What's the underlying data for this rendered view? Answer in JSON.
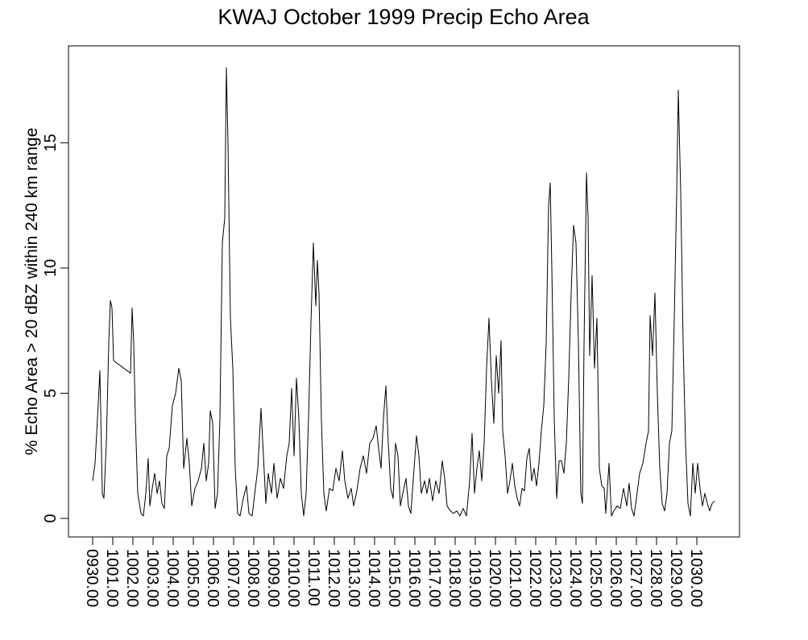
{
  "chart_data": {
    "type": "line",
    "title": "KWAJ October 1999 Precip Echo Area",
    "y_label": "% Echo Area > 20 dBZ within 240 km range",
    "xlim": [
      -1.2,
      32.12
    ],
    "ylim": [
      -0.74,
      18.87
    ],
    "yticks": [
      0,
      5,
      10,
      15
    ],
    "xticks": [
      {
        "value": 0,
        "label": "0930.00"
      },
      {
        "value": 1,
        "label": "1001.00"
      },
      {
        "value": 2,
        "label": "1002.00"
      },
      {
        "value": 3,
        "label": "1003.00"
      },
      {
        "value": 4,
        "label": "1004.00"
      },
      {
        "value": 5,
        "label": "1005.00"
      },
      {
        "value": 6,
        "label": "1006.00"
      },
      {
        "value": 7,
        "label": "1007.00"
      },
      {
        "value": 8,
        "label": "1008.00"
      },
      {
        "value": 9,
        "label": "1009.00"
      },
      {
        "value": 10,
        "label": "1010.00"
      },
      {
        "value": 11,
        "label": "1011.00"
      },
      {
        "value": 12,
        "label": "1012.00"
      },
      {
        "value": 13,
        "label": "1013.00"
      },
      {
        "value": 14,
        "label": "1014.00"
      },
      {
        "value": 15,
        "label": "1015.00"
      },
      {
        "value": 16,
        "label": "1016.00"
      },
      {
        "value": 17,
        "label": "1017.00"
      },
      {
        "value": 18,
        "label": "1018.00"
      },
      {
        "value": 19,
        "label": "1019.00"
      },
      {
        "value": 20,
        "label": "1020.00"
      },
      {
        "value": 21,
        "label": "1021.00"
      },
      {
        "value": 22,
        "label": "1022.00"
      },
      {
        "value": 23,
        "label": "1023.00"
      },
      {
        "value": 24,
        "label": "1024.00"
      },
      {
        "value": 25,
        "label": "1025.00"
      },
      {
        "value": 26,
        "label": "1026.00"
      },
      {
        "value": 27,
        "label": "1027.00"
      },
      {
        "value": 28,
        "label": "1028.00"
      },
      {
        "value": 29,
        "label": "1029.00"
      },
      {
        "value": 30,
        "label": "1030.00"
      }
    ],
    "grid": false,
    "color": "#000000",
    "x": [
      0,
      0.12,
      0.24,
      0.36,
      0.48,
      0.56,
      0.68,
      0.8,
      0.88,
      0.96,
      1.04,
      1.88,
      1.96,
      2.04,
      2.12,
      2.24,
      2.4,
      2.52,
      2.64,
      2.76,
      2.84,
      2.96,
      3.08,
      3.2,
      3.32,
      3.44,
      3.56,
      3.68,
      3.8,
      3.96,
      4.12,
      4.28,
      4.4,
      4.52,
      4.68,
      4.8,
      4.92,
      5.08,
      5.24,
      5.4,
      5.52,
      5.64,
      5.76,
      5.84,
      5.96,
      6.08,
      6.2,
      6.32,
      6.44,
      6.56,
      6.64,
      6.72,
      6.84,
      6.96,
      7.08,
      7.2,
      7.32,
      7.48,
      7.64,
      7.76,
      7.92,
      8.08,
      8.2,
      8.36,
      8.48,
      8.6,
      8.72,
      8.88,
      9,
      9.16,
      9.32,
      9.48,
      9.64,
      9.76,
      9.88,
      10,
      10.12,
      10.24,
      10.36,
      10.48,
      10.6,
      10.72,
      10.84,
      10.96,
      11.08,
      11.16,
      11.24,
      11.36,
      11.48,
      11.6,
      11.76,
      11.92,
      12.08,
      12.24,
      12.4,
      12.52,
      12.68,
      12.84,
      12.96,
      13.12,
      13.28,
      13.44,
      13.6,
      13.76,
      13.92,
      14.08,
      14.2,
      14.32,
      14.44,
      14.56,
      14.68,
      14.8,
      14.92,
      15.04,
      15.16,
      15.28,
      15.4,
      15.56,
      15.68,
      15.8,
      15.96,
      16.08,
      16.2,
      16.32,
      16.48,
      16.6,
      16.72,
      16.88,
      17.04,
      17.2,
      17.36,
      17.48,
      17.6,
      17.76,
      17.92,
      18.08,
      18.24,
      18.4,
      18.56,
      18.72,
      18.84,
      18.96,
      19.08,
      19.2,
      19.32,
      19.44,
      19.56,
      19.68,
      19.8,
      19.92,
      20.04,
      20.16,
      20.28,
      20.36,
      20.48,
      20.6,
      20.72,
      20.84,
      20.96,
      21.08,
      21.2,
      21.32,
      21.44,
      21.56,
      21.68,
      21.8,
      21.92,
      22.04,
      22.16,
      22.28,
      22.4,
      22.52,
      22.64,
      22.72,
      22.8,
      22.92,
      23.04,
      23.16,
      23.28,
      23.4,
      23.52,
      23.64,
      23.76,
      23.88,
      24,
      24.12,
      24.24,
      24.32,
      24.4,
      24.52,
      24.6,
      24.68,
      24.8,
      24.92,
      25.04,
      25.16,
      25.28,
      25.4,
      25.48,
      25.64,
      25.76,
      25.88,
      26.04,
      26.2,
      26.36,
      26.52,
      26.64,
      26.76,
      26.88,
      27,
      27.16,
      27.32,
      27.48,
      27.6,
      27.68,
      27.8,
      27.92,
      28.04,
      28.16,
      28.28,
      28.4,
      28.52,
      28.64,
      28.76,
      28.88,
      29,
      29.08,
      29.2,
      29.32,
      29.44,
      29.56,
      29.68,
      29.8,
      29.92,
      30.04,
      30.16,
      30.28,
      30.4,
      30.52,
      30.64,
      30.76,
      30.88
    ],
    "values": [
      1.5,
      2.2,
      4,
      5.9,
      1,
      0.8,
      3,
      7,
      8.7,
      8.4,
      6.3,
      5.8,
      8.4,
      7,
      4,
      1,
      0.2,
      0.1,
      1,
      2.4,
      0.5,
      1.2,
      1.8,
      1,
      1.5,
      0.6,
      0.4,
      2.5,
      2.8,
      4.5,
      5,
      6,
      5.5,
      2,
      3.2,
      2.2,
      0.5,
      1.2,
      1.5,
      2,
      3,
      1.5,
      2.2,
      4.3,
      3.8,
      0.4,
      1,
      4,
      11,
      12,
      18,
      15,
      8,
      6,
      2,
      0.2,
      0.1,
      0.8,
      1.3,
      0.2,
      0.1,
      1.2,
      2,
      4.4,
      2.5,
      0.6,
      1.8,
      1,
      2.2,
      0.8,
      1.6,
      1.2,
      2.5,
      3,
      5.2,
      2.5,
      5.6,
      4,
      1,
      0.1,
      1,
      4,
      7.8,
      11,
      8.5,
      10.3,
      9,
      3.9,
      1,
      0.3,
      1.2,
      1.1,
      2,
      1.5,
      2.7,
      1.5,
      0.8,
      1.2,
      0.5,
      1.1,
      2,
      2.5,
      1.8,
      3,
      3.2,
      3.7,
      2.8,
      2,
      4,
      5.3,
      3,
      1.2,
      0.8,
      3,
      2.5,
      0.5,
      1,
      1.6,
      0.5,
      0.2,
      2,
      3.3,
      2.5,
      1,
      1.5,
      1,
      1.6,
      0.7,
      1.5,
      1,
      2.3,
      1.6,
      0.5,
      0.3,
      0.2,
      0.3,
      0.1,
      0.4,
      0.1,
      1.5,
      3.4,
      1,
      2,
      2.7,
      1.5,
      3,
      6,
      8,
      5.5,
      3.8,
      6.5,
      5,
      7.1,
      3.5,
      2.5,
      1,
      1.5,
      2.2,
      1.3,
      0.8,
      0.5,
      1.2,
      1.1,
      2.4,
      2.8,
      1.5,
      2,
      1.3,
      2.2,
      3.5,
      4.5,
      7,
      12.5,
      13.4,
      10,
      4,
      0.8,
      2.3,
      2.3,
      1.8,
      3,
      5.6,
      9,
      11.7,
      11,
      7,
      1,
      0.6,
      7,
      13.8,
      12,
      6.5,
      9.7,
      6,
      8,
      2,
      1.3,
      1.2,
      0.2,
      2.2,
      0.1,
      0.3,
      0.5,
      0.4,
      1.2,
      0.5,
      1.4,
      0.4,
      0.1,
      0.8,
      1.8,
      2.2,
      3,
      3.5,
      8.1,
      6.5,
      9,
      5,
      2,
      0.6,
      0.3,
      1,
      3,
      3.5,
      8,
      13,
      17.1,
      13,
      7,
      3,
      0.6,
      0.1,
      2.2,
      1,
      2.2,
      1.2,
      0.5,
      1,
      0.6,
      0.3,
      0.6,
      0.7
    ]
  }
}
